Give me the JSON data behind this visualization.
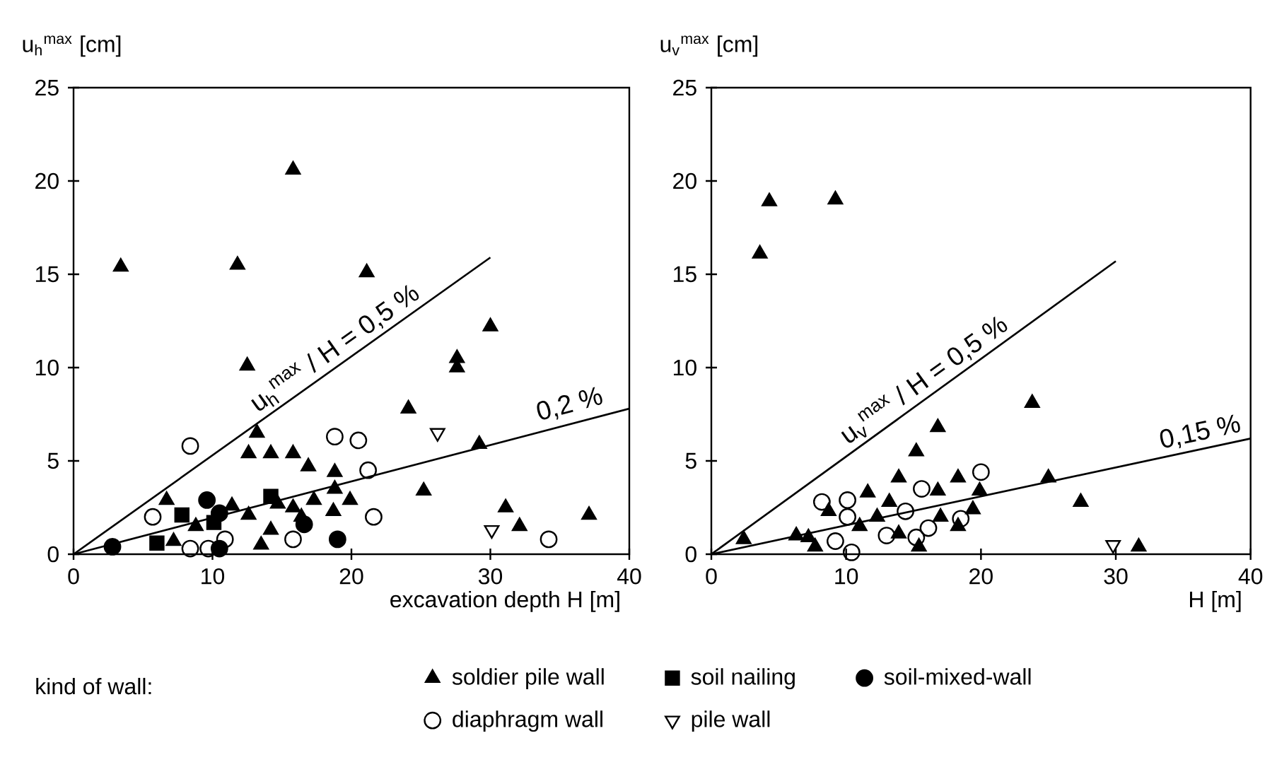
{
  "chart_data": [
    {
      "type": "scatter",
      "ylabel": "u$_{h}$$^{max}$ [cm]",
      "xlabel": "excavation depth  H [m]",
      "xlim": [
        0,
        40
      ],
      "xticks": [
        0,
        10,
        20,
        30,
        40
      ],
      "ylim": [
        0,
        25
      ],
      "yticks": [
        0,
        5,
        10,
        15,
        20,
        25
      ],
      "legend": "bottom",
      "legend_title": "kind of wall:",
      "annotations": [
        {
          "text": "u$_{h}$$^{max}$ / H = 0,5 %",
          "x": 19.5,
          "y": 10.3
        },
        {
          "text": "0,2 %",
          "x": 36,
          "y": 7.2
        }
      ],
      "series": [
        {
          "name": "soldier pile wall",
          "color": "#000000",
          "marker": "triangle",
          "x": [
            3.4,
            11.8,
            15.8,
            21.1,
            12.5,
            30.0,
            27.6,
            27.6,
            24.1,
            29.2,
            25.2,
            31.1,
            32.1,
            37.1,
            13.2,
            12.6,
            14.2,
            15.8,
            16.9,
            18.8,
            18.8,
            19.9,
            18.7,
            17.3,
            15.8,
            14.7,
            14.2,
            12.6,
            11.4,
            13.5,
            6.7,
            8.8,
            7.2,
            16.4
          ],
          "values": [
            15.4,
            15.5,
            20.6,
            15.1,
            10.1,
            12.2,
            10.5,
            10.0,
            7.8,
            5.9,
            3.4,
            2.5,
            1.5,
            2.1,
            6.5,
            5.4,
            5.4,
            5.4,
            4.7,
            4.4,
            3.5,
            2.9,
            2.3,
            2.9,
            2.5,
            2.7,
            1.3,
            2.1,
            2.6,
            0.5,
            2.9,
            1.5,
            0.7,
            2.0
          ]
        },
        {
          "name": "soil nailing",
          "color": "#000000",
          "marker": "square",
          "x": [
            7.8,
            6.0,
            14.2,
            10.1
          ],
          "values": [
            2.1,
            0.6,
            3.1,
            1.7
          ]
        },
        {
          "name": "soil-mixed-wall",
          "color": "#000000",
          "marker": "circle",
          "x": [
            2.8,
            9.6,
            10.5,
            10.5,
            19.0,
            16.6
          ],
          "values": [
            0.4,
            2.9,
            2.2,
            0.3,
            0.8,
            1.6
          ]
        },
        {
          "name": "diaphragm wall",
          "color": "#000000",
          "marker": "circle-open",
          "x": [
            8.4,
            18.8,
            20.5,
            21.2,
            21.6,
            34.2,
            5.7,
            8.4,
            9.7,
            10.9,
            15.8
          ],
          "values": [
            5.8,
            6.3,
            6.1,
            4.5,
            2.0,
            0.8,
            2.0,
            0.3,
            0.3,
            0.8,
            0.8
          ]
        },
        {
          "name": "pile wall",
          "color": "#000000",
          "marker": "triangle-down-open",
          "x": [
            26.2,
            30.1
          ],
          "values": [
            6.5,
            1.3
          ]
        },
        {
          "type": "line",
          "color": "#000000",
          "x": [
            0,
            30
          ],
          "values": [
            0,
            15.9
          ]
        },
        {
          "type": "line",
          "color": "#000000",
          "x": [
            0,
            40
          ],
          "values": [
            0,
            7.8
          ]
        }
      ]
    },
    {
      "type": "scatter",
      "ylabel": "u$_{v}$$^{max}$ [cm]",
      "xlabel": "H [m]",
      "xlim": [
        0,
        40
      ],
      "xticks": [
        0,
        10,
        20,
        30,
        40
      ],
      "ylim": [
        0,
        25
      ],
      "yticks": [
        0,
        5,
        10,
        15,
        20,
        25
      ],
      "annotations": [
        {
          "text": "u$_{v}$$^{max}$ / H = 0,5 %",
          "x": 16.5,
          "y": 8.6
        },
        {
          "text": "0,15 %",
          "x": 36.5,
          "y": 5.7
        }
      ],
      "series": [
        {
          "color": "#000000",
          "marker": "triangle",
          "x": [
            3.6,
            4.3,
            9.2,
            23.8,
            16.8,
            15.2,
            13.9,
            18.3,
            25.0,
            27.4,
            31.7,
            11.6,
            13.2,
            16.8,
            19.9,
            19.4,
            17.0,
            18.3,
            8.7,
            11.0,
            12.3,
            13.9,
            2.4,
            6.3,
            7.2,
            7.7,
            15.4
          ],
          "values": [
            16.1,
            18.9,
            19.0,
            8.1,
            6.8,
            5.5,
            4.1,
            4.1,
            4.1,
            2.8,
            0.4,
            3.3,
            2.8,
            3.4,
            3.4,
            2.4,
            2.0,
            1.5,
            2.3,
            1.5,
            2.0,
            1.1,
            0.8,
            1.0,
            0.9,
            0.4,
            0.4
          ]
        },
        {
          "color": "#000000",
          "marker": "circle-open",
          "x": [
            8.2,
            10.1,
            10.1,
            9.2,
            10.4,
            15.6,
            14.4,
            13.0,
            15.2,
            16.1,
            18.5,
            20.0
          ],
          "values": [
            2.8,
            2.9,
            2.0,
            0.7,
            0.1,
            3.5,
            2.3,
            1.0,
            0.9,
            1.4,
            1.9,
            4.4
          ]
        },
        {
          "color": "#000000",
          "marker": "triangle-down-open",
          "x": [
            29.8
          ],
          "values": [
            0.5
          ]
        },
        {
          "type": "line",
          "color": "#000000",
          "x": [
            0,
            30
          ],
          "values": [
            0,
            15.7
          ]
        },
        {
          "type": "line",
          "color": "#000000",
          "x": [
            0,
            40
          ],
          "values": [
            0,
            6.2
          ]
        }
      ]
    }
  ]
}
